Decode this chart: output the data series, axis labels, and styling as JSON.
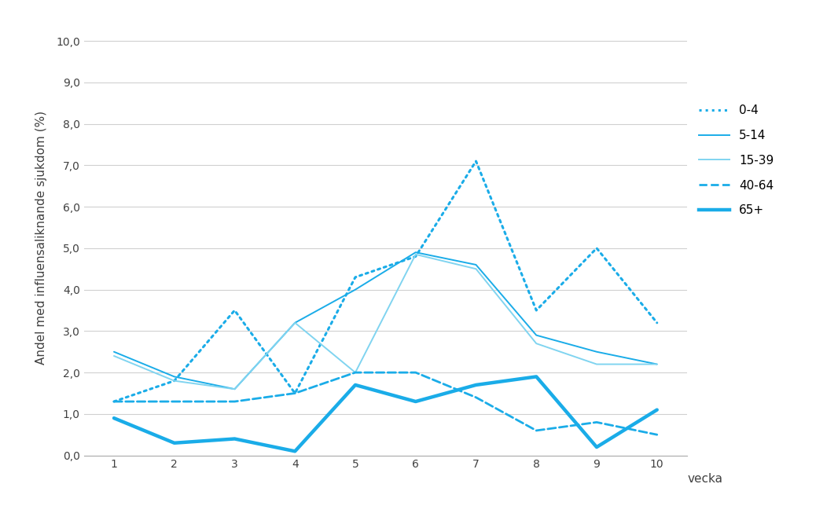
{
  "weeks": [
    1,
    2,
    3,
    4,
    5,
    6,
    7,
    8,
    9,
    10
  ],
  "series": {
    "0-4": [
      1.3,
      1.8,
      3.5,
      1.5,
      4.3,
      4.8,
      7.1,
      3.5,
      5.0,
      3.2
    ],
    "5-14": [
      2.5,
      1.9,
      1.6,
      3.2,
      4.0,
      4.9,
      4.6,
      2.9,
      2.5,
      2.2
    ],
    "15-39": [
      2.4,
      1.8,
      1.6,
      3.2,
      2.0,
      4.85,
      4.5,
      2.7,
      2.2,
      2.2
    ],
    "40-64": [
      1.3,
      1.3,
      1.3,
      1.5,
      2.0,
      2.0,
      1.4,
      0.6,
      0.8,
      0.5
    ],
    "65+": [
      0.9,
      0.3,
      0.4,
      0.1,
      1.7,
      1.3,
      1.7,
      1.9,
      0.2,
      1.1
    ]
  },
  "styles": {
    "0-4": {
      "color": "#1AACE8",
      "linestyle": "dotted",
      "linewidth": 2.2,
      "dashes": []
    },
    "5-14": {
      "color": "#1AACE8",
      "linestyle": "solid",
      "linewidth": 1.4
    },
    "15-39": {
      "color": "#80D4F0",
      "linestyle": "solid",
      "linewidth": 1.4
    },
    "40-64": {
      "color": "#1AACE8",
      "linestyle": "dashed",
      "linewidth": 2.0
    },
    "65+": {
      "color": "#1AACE8",
      "linestyle": "solid",
      "linewidth": 3.2
    }
  },
  "ylabel": "Andel med influensaliknande sjukdom (%)",
  "xlabel": "vecka",
  "ylim": [
    0,
    10.5
  ],
  "yticks": [
    0.0,
    1.0,
    2.0,
    3.0,
    4.0,
    5.0,
    6.0,
    7.0,
    8.0,
    9.0,
    10.0
  ],
  "ytick_labels": [
    "0,0",
    "1,0",
    "2,0",
    "3,0",
    "4,0",
    "5,0",
    "6,0",
    "7,0",
    "8,0",
    "9,0",
    "10,0"
  ],
  "bg_color": "#FFFFFF",
  "legend_order": [
    "0-4",
    "5-14",
    "15-39",
    "40-64",
    "65+"
  ]
}
